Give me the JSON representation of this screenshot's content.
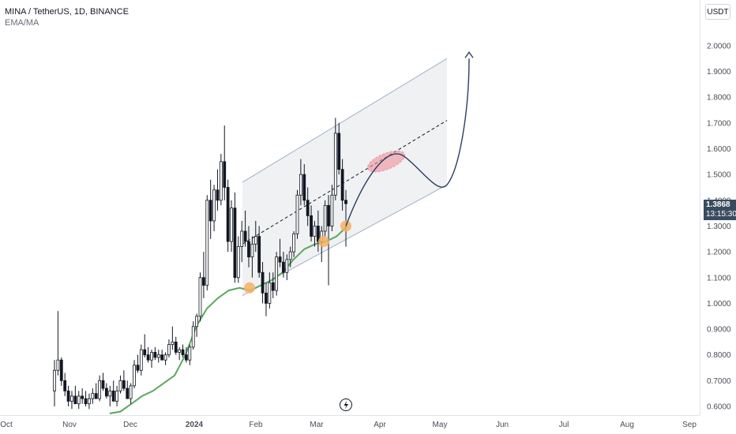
{
  "legend": {
    "symbol": "MINA / TetherUS, 1D, BINANCE",
    "indicator": "EMA/MA"
  },
  "currency_label": "USDT",
  "last_price": {
    "value": "1.3868",
    "countdown": "13:15:30",
    "color": "#3a4b5e"
  },
  "colors": {
    "up": "#131722",
    "down": "#131722",
    "ema": "#5aa85f",
    "channel_fill": "#eceef1",
    "channel_line": "#9fb0c8",
    "path": "#2b3e62",
    "marker": "#f7b064",
    "target": "#ee8f9b"
  },
  "chart_data": {
    "type": "candlestick",
    "title": "MINA / TetherUS, 1D, BINANCE",
    "x_ticks": [
      "Oct",
      "Nov",
      "Dec",
      "2024",
      "Feb",
      "Mar",
      "Apr",
      "May",
      "Jun",
      "Jul",
      "Aug",
      "Sep"
    ],
    "y_ticks": [
      "0.6000",
      "0.7000",
      "0.8000",
      "0.9000",
      "1.0000",
      "1.1000",
      "1.2000",
      "1.3000",
      "1.4000",
      "1.5000",
      "1.6000",
      "1.7000",
      "1.8000",
      "1.9000",
      "2.0000"
    ],
    "y_range": [
      0.58,
      2.1
    ],
    "candles_ohlc": [
      [
        0.66,
        0.78,
        0.6,
        0.74
      ],
      [
        0.74,
        0.97,
        0.72,
        0.78
      ],
      [
        0.78,
        0.79,
        0.68,
        0.7
      ],
      [
        0.7,
        0.73,
        0.64,
        0.66
      ],
      [
        0.66,
        0.68,
        0.6,
        0.62
      ],
      [
        0.62,
        0.66,
        0.59,
        0.64
      ],
      [
        0.64,
        0.68,
        0.62,
        0.61
      ],
      [
        0.61,
        0.66,
        0.59,
        0.64
      ],
      [
        0.64,
        0.67,
        0.61,
        0.63
      ],
      [
        0.63,
        0.66,
        0.6,
        0.61
      ],
      [
        0.61,
        0.65,
        0.59,
        0.63
      ],
      [
        0.63,
        0.67,
        0.61,
        0.65
      ],
      [
        0.65,
        0.69,
        0.63,
        0.63
      ],
      [
        0.63,
        0.72,
        0.62,
        0.7
      ],
      [
        0.7,
        0.73,
        0.66,
        0.67
      ],
      [
        0.67,
        0.69,
        0.63,
        0.64
      ],
      [
        0.64,
        0.68,
        0.6,
        0.66
      ],
      [
        0.66,
        0.7,
        0.64,
        0.62
      ],
      [
        0.62,
        0.68,
        0.6,
        0.66
      ],
      [
        0.66,
        0.72,
        0.65,
        0.7
      ],
      [
        0.7,
        0.74,
        0.66,
        0.67
      ],
      [
        0.67,
        0.7,
        0.63,
        0.63
      ],
      [
        0.63,
        0.69,
        0.61,
        0.68
      ],
      [
        0.68,
        0.78,
        0.67,
        0.76
      ],
      [
        0.76,
        0.8,
        0.73,
        0.74
      ],
      [
        0.74,
        0.84,
        0.72,
        0.82
      ],
      [
        0.82,
        0.88,
        0.79,
        0.8
      ],
      [
        0.8,
        0.83,
        0.77,
        0.78
      ],
      [
        0.78,
        0.82,
        0.75,
        0.81
      ],
      [
        0.81,
        0.83,
        0.78,
        0.79
      ],
      [
        0.79,
        0.82,
        0.77,
        0.8
      ],
      [
        0.8,
        0.82,
        0.78,
        0.78
      ],
      [
        0.78,
        0.81,
        0.76,
        0.8
      ],
      [
        0.8,
        0.86,
        0.79,
        0.84
      ],
      [
        0.84,
        0.91,
        0.82,
        0.85
      ],
      [
        0.85,
        0.87,
        0.8,
        0.81
      ],
      [
        0.81,
        0.83,
        0.78,
        0.82
      ],
      [
        0.82,
        0.84,
        0.79,
        0.8
      ],
      [
        0.8,
        0.83,
        0.77,
        0.78
      ],
      [
        0.78,
        0.84,
        0.76,
        0.83
      ],
      [
        0.83,
        0.93,
        0.82,
        0.91
      ],
      [
        0.91,
        0.96,
        0.87,
        0.95
      ],
      [
        0.95,
        1.12,
        0.93,
        1.1
      ],
      [
        1.1,
        1.2,
        1.02,
        1.07
      ],
      [
        1.07,
        1.42,
        1.05,
        1.4
      ],
      [
        1.4,
        1.48,
        1.25,
        1.32
      ],
      [
        1.32,
        1.46,
        1.28,
        1.44
      ],
      [
        1.44,
        1.52,
        1.36,
        1.4
      ],
      [
        1.4,
        1.58,
        1.38,
        1.55
      ],
      [
        1.55,
        1.69,
        1.4,
        1.45
      ],
      [
        1.45,
        1.48,
        1.2,
        1.24
      ],
      [
        1.24,
        1.4,
        1.2,
        1.37
      ],
      [
        1.37,
        1.43,
        1.08,
        1.1
      ],
      [
        1.1,
        1.26,
        1.08,
        1.22
      ],
      [
        1.22,
        1.32,
        1.16,
        1.28
      ],
      [
        1.28,
        1.36,
        1.22,
        1.24
      ],
      [
        1.24,
        1.3,
        1.14,
        1.18
      ],
      [
        1.18,
        1.26,
        1.1,
        1.23
      ],
      [
        1.23,
        1.32,
        1.2,
        1.26
      ],
      [
        1.26,
        1.3,
        1.1,
        1.12
      ],
      [
        1.12,
        1.16,
        1.0,
        1.04
      ],
      [
        1.04,
        1.08,
        0.95,
        1.0
      ],
      [
        1.0,
        1.12,
        0.98,
        1.08
      ],
      [
        1.08,
        1.12,
        1.02,
        1.05
      ],
      [
        1.05,
        1.2,
        1.03,
        1.18
      ],
      [
        1.18,
        1.25,
        1.14,
        1.16
      ],
      [
        1.16,
        1.2,
        1.1,
        1.12
      ],
      [
        1.12,
        1.19,
        1.09,
        1.17
      ],
      [
        1.17,
        1.22,
        1.14,
        1.2
      ],
      [
        1.2,
        1.28,
        1.18,
        1.27
      ],
      [
        1.27,
        1.44,
        1.25,
        1.42
      ],
      [
        1.42,
        1.56,
        1.38,
        1.5
      ],
      [
        1.5,
        1.54,
        1.38,
        1.4
      ],
      [
        1.4,
        1.45,
        1.3,
        1.34
      ],
      [
        1.34,
        1.38,
        1.24,
        1.26
      ],
      [
        1.26,
        1.32,
        1.22,
        1.3
      ],
      [
        1.3,
        1.36,
        1.2,
        1.24
      ],
      [
        1.24,
        1.3,
        1.16,
        1.28
      ],
      [
        1.28,
        1.4,
        1.26,
        1.38
      ],
      [
        1.38,
        1.42,
        1.07,
        1.3
      ],
      [
        1.3,
        1.46,
        1.28,
        1.42
      ],
      [
        1.42,
        1.72,
        1.4,
        1.66
      ],
      [
        1.66,
        1.7,
        1.5,
        1.52
      ],
      [
        1.52,
        1.56,
        1.36,
        1.4
      ],
      [
        1.4,
        1.44,
        1.22,
        1.3868
      ]
    ],
    "ema": [
      0.56,
      0.58,
      0.61,
      0.64,
      0.66,
      0.69,
      0.72,
      0.8,
      0.91,
      0.98,
      1.02,
      1.05,
      1.06,
      1.05,
      1.07,
      1.09,
      1.12,
      1.17,
      1.21,
      1.23,
      1.24,
      1.26,
      1.3
    ],
    "channel": {
      "upper_start": 1.47,
      "upper_end": 1.95,
      "lower_start": 1.03,
      "lower_end": 1.46,
      "mid_start": 1.23,
      "mid_end": 1.71
    },
    "markers": [
      1.06,
      1.24,
      1.3
    ],
    "projection": [
      1.3,
      1.46,
      1.57,
      1.53,
      1.47,
      1.45,
      1.52,
      1.68,
      1.95
    ]
  }
}
